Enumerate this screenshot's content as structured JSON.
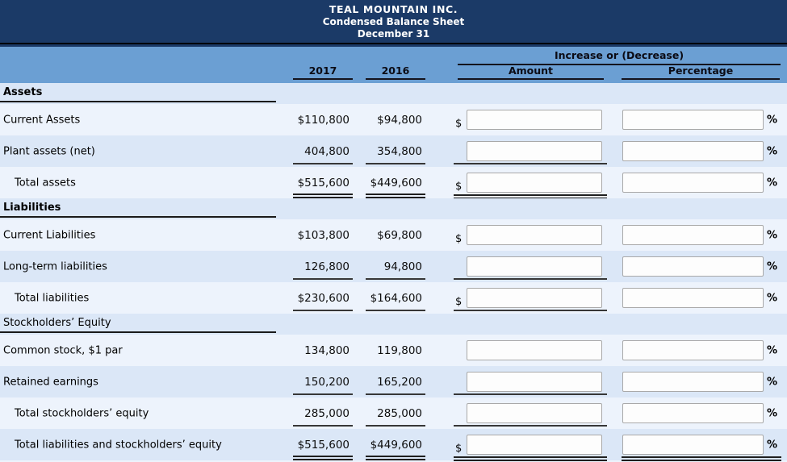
{
  "title": {
    "company": "TEAL MOUNTAIN INC.",
    "report": "Condensed Balance Sheet",
    "date": "December 31"
  },
  "columns": {
    "group_header": "Increase or (Decrease)",
    "year1": "2017",
    "year2": "2016",
    "amount": "Amount",
    "percentage": "Percentage",
    "dollar_prefix": "$",
    "percent_suffix": "%"
  },
  "colors": {
    "navy": "#1b3a67",
    "band_blue": "#6b9fd3",
    "row_light": "#edf3fc",
    "row_dark": "#dbe7f7"
  },
  "inputs": {
    "amount_value": "",
    "percentage_value": ""
  },
  "rows": [
    {
      "type": "section",
      "label": "Assets",
      "bold": true
    },
    {
      "type": "data",
      "label": "Current Assets",
      "indent": false,
      "y2017": "$110,800",
      "y2016": "$94,800",
      "dollar": true,
      "rule": "none",
      "pct_rule": "none"
    },
    {
      "type": "data",
      "label": "Plant assets (net)",
      "indent": false,
      "y2017": "404,800",
      "y2016": "354,800",
      "dollar": false,
      "rule": "single",
      "pct_rule": "none"
    },
    {
      "type": "data",
      "label": "Total assets",
      "indent": true,
      "y2017": "$515,600",
      "y2016": "$449,600",
      "dollar": true,
      "rule": "double",
      "pct_rule": "none"
    },
    {
      "type": "section",
      "label": "Liabilities",
      "bold": true
    },
    {
      "type": "data",
      "label": "Current Liabilities",
      "indent": false,
      "y2017": "$103,800",
      "y2016": "$69,800",
      "dollar": true,
      "rule": "none",
      "pct_rule": "none"
    },
    {
      "type": "data",
      "label": "Long-term liabilities",
      "indent": false,
      "y2017": "126,800",
      "y2016": "94,800",
      "dollar": false,
      "rule": "single",
      "pct_rule": "none"
    },
    {
      "type": "data",
      "label": "Total liabilities",
      "indent": true,
      "y2017": "$230,600",
      "y2016": "$164,600",
      "dollar": true,
      "rule": "single",
      "pct_rule": "none"
    },
    {
      "type": "section",
      "label": "Stockholders’ Equity",
      "bold": false
    },
    {
      "type": "data",
      "label": "Common stock, $1 par",
      "indent": false,
      "y2017": "134,800",
      "y2016": "119,800",
      "dollar": false,
      "rule": "none",
      "pct_rule": "none"
    },
    {
      "type": "data",
      "label": "Retained earnings",
      "indent": false,
      "y2017": "150,200",
      "y2016": "165,200",
      "dollar": false,
      "rule": "single",
      "pct_rule": "none"
    },
    {
      "type": "data",
      "label": "Total stockholders’ equity",
      "indent": true,
      "y2017": "285,000",
      "y2016": "285,000",
      "dollar": false,
      "rule": "single",
      "pct_rule": "none"
    },
    {
      "type": "data",
      "label": "Total liabilities and stockholders’ equity",
      "indent": true,
      "y2017": "$515,600",
      "y2016": "$449,600",
      "dollar": true,
      "rule": "double",
      "pct_rule": "double"
    }
  ]
}
